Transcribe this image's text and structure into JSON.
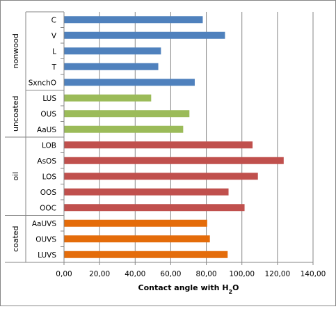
{
  "chart_data": {
    "type": "bar",
    "orientation": "horizontal",
    "xlabel": "Contact angle with H",
    "xlabel_subscript": "2",
    "xlabel_suffix": "O",
    "xlim": [
      0,
      140
    ],
    "xticks": [
      "0,00",
      "20,00",
      "40,00",
      "60,00",
      "80,00",
      "100,00",
      "120,00",
      "140,00"
    ],
    "grid": true,
    "groups": [
      {
        "label": "nonwood",
        "color": "#4F81BD",
        "categories": [
          "C",
          "V",
          "L",
          "T",
          "SxnchO"
        ],
        "values": [
          78,
          90.5,
          54.5,
          53,
          73.5
        ]
      },
      {
        "label": "uncoated",
        "color": "#9BBB59",
        "categories": [
          "LUS",
          "OUS",
          "AaUS"
        ],
        "values": [
          49,
          70.5,
          67
        ]
      },
      {
        "label": "oil",
        "color": "#C0504D",
        "categories": [
          "LOB",
          "AsOS",
          "LOS",
          "OOS",
          "OOC"
        ],
        "values": [
          106,
          123.5,
          109,
          92.5,
          101.5
        ]
      },
      {
        "label": "coated",
        "color": "#E46C0A",
        "categories": [
          "AaUVS",
          "OUVS",
          "LUVS"
        ],
        "values": [
          80.5,
          82,
          92
        ]
      }
    ]
  }
}
